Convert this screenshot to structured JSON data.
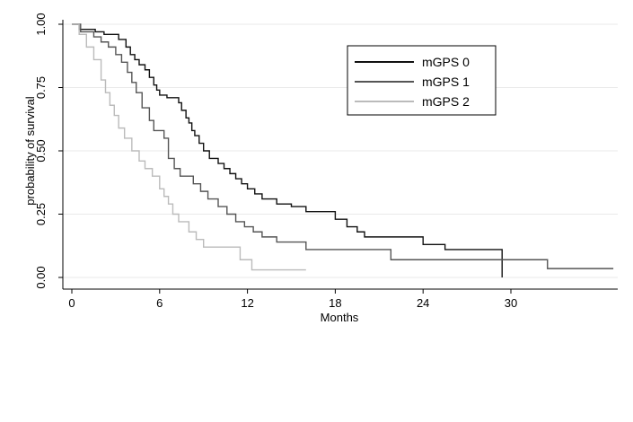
{
  "chart_data": {
    "type": "line",
    "step": true,
    "title": "",
    "xlabel": "Months",
    "ylabel": "probability of survival",
    "xlim": [
      0,
      37
    ],
    "ylim": [
      0,
      1
    ],
    "xticks": [
      0,
      6,
      12,
      18,
      24,
      30
    ],
    "yticks": [
      0,
      0.25,
      0.5,
      0.75,
      1
    ],
    "ytick_labels": [
      "0.00",
      "0.25",
      "0.50",
      "0.75",
      "1.00"
    ],
    "grid": "horizontal",
    "legend_position": "top-right",
    "series": [
      {
        "name": "mGPS 0",
        "color": "#111111",
        "x": [
          0,
          0.5,
          1.6,
          2.2,
          3.2,
          3.7,
          4.0,
          4.3,
          4.6,
          5.0,
          5.3,
          5.6,
          5.8,
          6.0,
          6.5,
          7.3,
          7.5,
          7.8,
          8.0,
          8.2,
          8.4,
          8.7,
          9.0,
          9.4,
          10.0,
          10.4,
          10.8,
          11.2,
          11.6,
          12.0,
          12.5,
          13.0,
          14.0,
          15.0,
          16.0,
          18.0,
          18.8,
          19.5,
          20.0,
          21.5,
          22.0,
          23.0,
          24.0,
          25.5,
          29.4,
          29.4
        ],
        "y": [
          1.0,
          0.98,
          0.97,
          0.96,
          0.94,
          0.91,
          0.88,
          0.86,
          0.84,
          0.82,
          0.79,
          0.76,
          0.74,
          0.72,
          0.71,
          0.69,
          0.66,
          0.63,
          0.61,
          0.58,
          0.56,
          0.53,
          0.5,
          0.47,
          0.45,
          0.43,
          0.41,
          0.39,
          0.37,
          0.35,
          0.33,
          0.31,
          0.29,
          0.28,
          0.26,
          0.23,
          0.2,
          0.18,
          0.16,
          0.16,
          0.16,
          0.16,
          0.13,
          0.11,
          0.11,
          0.0
        ]
      },
      {
        "name": "mGPS 1",
        "color": "#555555",
        "x": [
          0,
          0.6,
          1.5,
          2.0,
          2.5,
          3.0,
          3.4,
          3.8,
          4.1,
          4.4,
          4.8,
          5.3,
          5.6,
          6.3,
          6.6,
          7.0,
          7.4,
          8.3,
          8.8,
          9.3,
          10.0,
          10.6,
          11.2,
          11.8,
          12.4,
          13.0,
          14.0,
          16.0,
          21.8,
          32.5,
          37.0
        ],
        "y": [
          1.0,
          0.97,
          0.95,
          0.93,
          0.91,
          0.88,
          0.85,
          0.81,
          0.77,
          0.73,
          0.67,
          0.62,
          0.58,
          0.55,
          0.47,
          0.43,
          0.4,
          0.37,
          0.34,
          0.31,
          0.28,
          0.25,
          0.22,
          0.2,
          0.18,
          0.16,
          0.14,
          0.11,
          0.07,
          0.035,
          0.035
        ],
        "end_x": 37.0
      },
      {
        "name": "mGPS 2",
        "color": "#bbbbbb",
        "x": [
          0,
          0.5,
          1.0,
          1.5,
          2.0,
          2.3,
          2.6,
          2.9,
          3.2,
          3.6,
          4.1,
          4.6,
          5.0,
          5.5,
          6.0,
          6.3,
          6.6,
          6.9,
          7.3,
          8.0,
          8.5,
          9.0,
          11.5,
          12.3,
          16.0
        ],
        "y": [
          1.0,
          0.96,
          0.91,
          0.86,
          0.78,
          0.73,
          0.68,
          0.64,
          0.59,
          0.55,
          0.5,
          0.46,
          0.43,
          0.4,
          0.35,
          0.32,
          0.29,
          0.25,
          0.22,
          0.18,
          0.15,
          0.12,
          0.07,
          0.03,
          0.03
        ],
        "end_x": 16.0
      }
    ]
  }
}
